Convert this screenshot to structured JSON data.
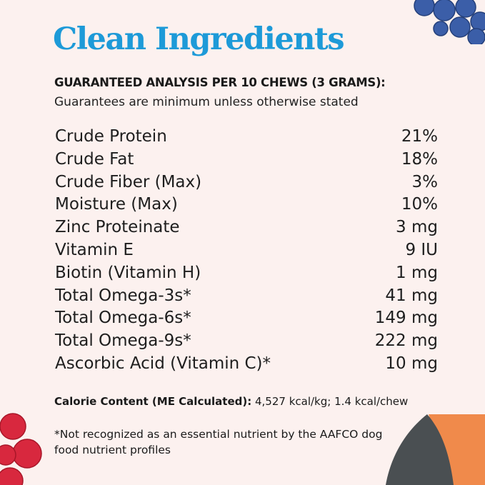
{
  "title": "Clean Ingredients",
  "subtitle": "GUARANTEED ANALYSIS PER 10 CHEWS (3 GRAMS):",
  "note": "Guarantees are minimum unless otherwise stated",
  "rows": [
    {
      "label": "Crude Protein",
      "value": "21%"
    },
    {
      "label": "Crude Fat",
      "value": "18%"
    },
    {
      "label": "Crude Fiber (Max)",
      "value": "3%"
    },
    {
      "label": "Moisture (Max)",
      "value": "10%"
    },
    {
      "label": "Zinc Proteinate",
      "value": "3 mg"
    },
    {
      "label": "Vitamin E",
      "value": "9 IU"
    },
    {
      "label": "Biotin (Vitamin H)",
      "value": "1 mg"
    },
    {
      "label": "Total Omega-3s*",
      "value": "41 mg"
    },
    {
      "label": "Total Omega-6s*",
      "value": "149 mg"
    },
    {
      "label": "Total Omega-9s*",
      "value": "222 mg"
    },
    {
      "label": "Ascorbic Acid (Vitamin C)*",
      "value": "10 mg"
    }
  ],
  "calorie": {
    "label": "Calorie Content (ME Calculated):",
    "value": "4,527 kcal/kg; 1.4 kcal/chew"
  },
  "footnote": "*Not recognized as an essential nutrient by the AAFCO dog food nutrient profiles",
  "colors": {
    "background": "#fcf1ef",
    "title": "#1d9ad8"
  },
  "decorations": [
    "blueberries-image",
    "raspberries-image",
    "salmon-image"
  ]
}
